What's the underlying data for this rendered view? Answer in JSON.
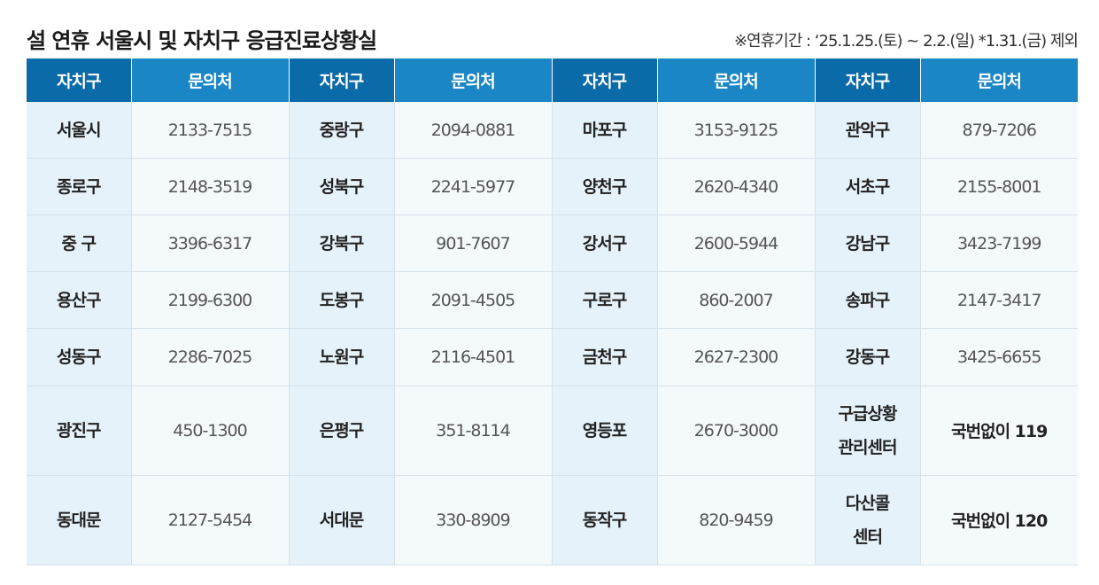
{
  "title": "설 연휴 서울시 및 자치구 응급진료상황실",
  "note": "※연휴기간 : ‘25.1.25.(토) ~ 2.2.(일) *1.31.(금) 제외",
  "headers": {
    "district": "자치구",
    "contact": "문의처"
  },
  "rows": [
    {
      "c": [
        {
          "n": "서울시",
          "p": "2133-7515"
        },
        {
          "n": "중랑구",
          "p": "2094-0881"
        },
        {
          "n": "마포구",
          "p": "3153-9125"
        },
        {
          "n": "관악구",
          "p": "879-7206"
        }
      ]
    },
    {
      "c": [
        {
          "n": "종로구",
          "p": "2148-3519"
        },
        {
          "n": "성북구",
          "p": "2241-5977"
        },
        {
          "n": "양천구",
          "p": "2620-4340"
        },
        {
          "n": "서초구",
          "p": "2155-8001"
        }
      ]
    },
    {
      "c": [
        {
          "n": "중 구",
          "p": "3396-6317"
        },
        {
          "n": "강북구",
          "p": "901-7607"
        },
        {
          "n": "강서구",
          "p": "2600-5944"
        },
        {
          "n": "강남구",
          "p": "3423-7199"
        }
      ]
    },
    {
      "c": [
        {
          "n": "용산구",
          "p": "2199-6300"
        },
        {
          "n": "도봉구",
          "p": "2091-4505"
        },
        {
          "n": "구로구",
          "p": "860-2007"
        },
        {
          "n": "송파구",
          "p": "2147-3417"
        }
      ]
    },
    {
      "c": [
        {
          "n": "성동구",
          "p": "2286-7025"
        },
        {
          "n": "노원구",
          "p": "2116-4501"
        },
        {
          "n": "금천구",
          "p": "2627-2300"
        },
        {
          "n": "강동구",
          "p": "3425-6655"
        }
      ]
    },
    {
      "c": [
        {
          "n": "광진구",
          "p": "450-1300"
        },
        {
          "n": "은평구",
          "p": "351-8114"
        },
        {
          "n": "영등포",
          "p": "2670-3000"
        },
        {
          "n1": "구급상황",
          "n2": "관리센터",
          "p": "국번없이 119"
        }
      ]
    },
    {
      "c": [
        {
          "n": "동대문",
          "p": "2127-5454"
        },
        {
          "n": "서대문",
          "p": "330-8909"
        },
        {
          "n": "동작구",
          "p": "820-9459"
        },
        {
          "n1": "다산콜",
          "n2": "센터",
          "p": "국번없이 120"
        }
      ]
    }
  ]
}
